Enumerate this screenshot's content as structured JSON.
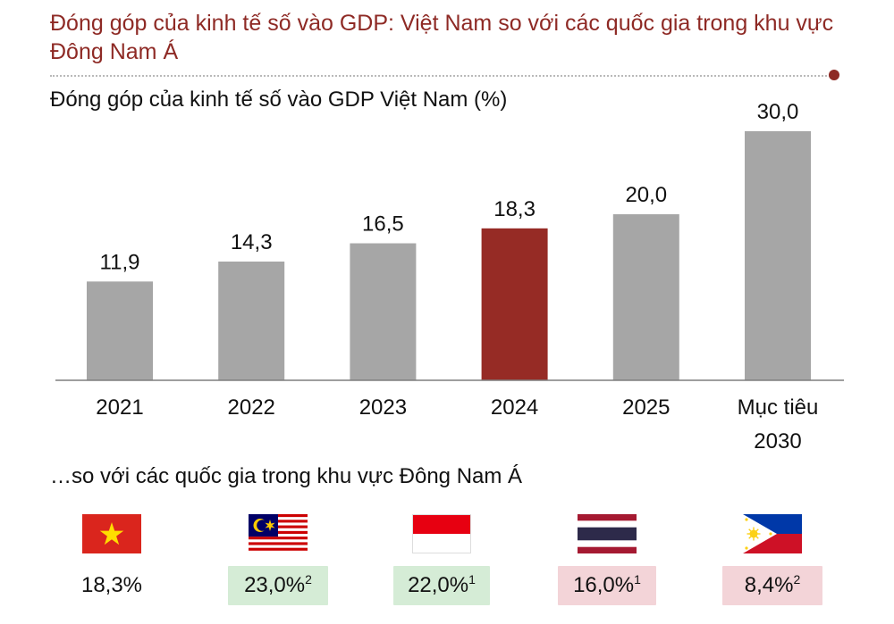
{
  "title": "Đóng góp của kinh tế số vào GDP: Việt Nam so với các quốc gia trong khu vực Đông Nam Á",
  "chart_data": {
    "type": "bar",
    "title": "Đóng góp của kinh tế số vào GDP Việt Nam (%)",
    "categories": [
      "2021",
      "2022",
      "2023",
      "2024",
      "2025",
      "Mục tiêu 2030"
    ],
    "values": [
      11.9,
      14.3,
      16.5,
      18.3,
      20.0,
      30.0
    ],
    "value_labels": [
      "11,9",
      "14,3",
      "16,5",
      "18,3",
      "20,0",
      "30,0"
    ],
    "highlight_index": 3,
    "ylim": [
      0,
      30
    ],
    "grid": false,
    "colors": {
      "bar": "#a6a6a6",
      "highlight": "#962b25",
      "axis": "#7f7f7f"
    }
  },
  "comparison": {
    "title": "…so với các quốc gia trong khu vực Đông Nam Á",
    "countries": [
      {
        "flag": "vietnam-flag",
        "value": "18,3%",
        "note": "",
        "style": "none"
      },
      {
        "flag": "malaysia-flag",
        "value": "23,0%",
        "note": "2",
        "style": "green"
      },
      {
        "flag": "indonesia-flag",
        "value": "22,0%",
        "note": "1",
        "style": "green"
      },
      {
        "flag": "thailand-flag",
        "value": "16,0%",
        "note": "1",
        "style": "pink"
      },
      {
        "flag": "philippines-flag",
        "value": "8,4%",
        "note": "2",
        "style": "pink"
      }
    ]
  }
}
